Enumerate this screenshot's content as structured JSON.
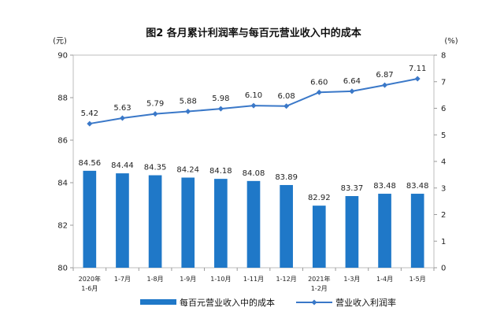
{
  "chart_data": {
    "type": "bar",
    "title": "图2  各月累计利润率与每百元营业收入中的成本",
    "left_unit": "(元)",
    "right_unit": "(%)",
    "categories": [
      [
        "2020年",
        "1-6月"
      ],
      [
        "1-7月"
      ],
      [
        "1-8月"
      ],
      [
        "1-9月"
      ],
      [
        "1-10月"
      ],
      [
        "1-11月"
      ],
      [
        "1-12月"
      ],
      [
        "2021年",
        "1-2月"
      ],
      [
        "1-3月"
      ],
      [
        "1-4月"
      ],
      [
        "1-5月"
      ]
    ],
    "y_left": {
      "min": 80,
      "max": 90,
      "ticks": [
        80,
        82,
        84,
        86,
        88,
        90
      ]
    },
    "y_right": {
      "min": 0,
      "max": 8,
      "ticks": [
        0,
        1,
        2,
        3,
        4,
        5,
        6,
        7,
        8
      ]
    },
    "grid": false,
    "legend_position": "bottom",
    "series": [
      {
        "name": "每百元营业收入中的成本",
        "type": "bar",
        "axis": "left",
        "color": "#1f78c8",
        "values": [
          84.56,
          84.44,
          84.35,
          84.24,
          84.18,
          84.08,
          83.89,
          82.92,
          83.37,
          83.48,
          83.48
        ],
        "labels": [
          "84.56",
          "84.44",
          "84.35",
          "84.24",
          "84.18",
          "84.08",
          "83.89",
          "82.92",
          "83.37",
          "83.48",
          "83.48"
        ]
      },
      {
        "name": "营业收入利润率",
        "type": "line",
        "axis": "right",
        "color": "#3a78c8",
        "values": [
          5.42,
          5.63,
          5.79,
          5.88,
          5.98,
          6.1,
          6.08,
          6.6,
          6.64,
          6.87,
          7.11
        ],
        "labels": [
          "5.42",
          "5.63",
          "5.79",
          "5.88",
          "5.98",
          "6.10",
          "6.08",
          "6.60",
          "6.64",
          "6.87",
          "7.11"
        ]
      }
    ]
  }
}
